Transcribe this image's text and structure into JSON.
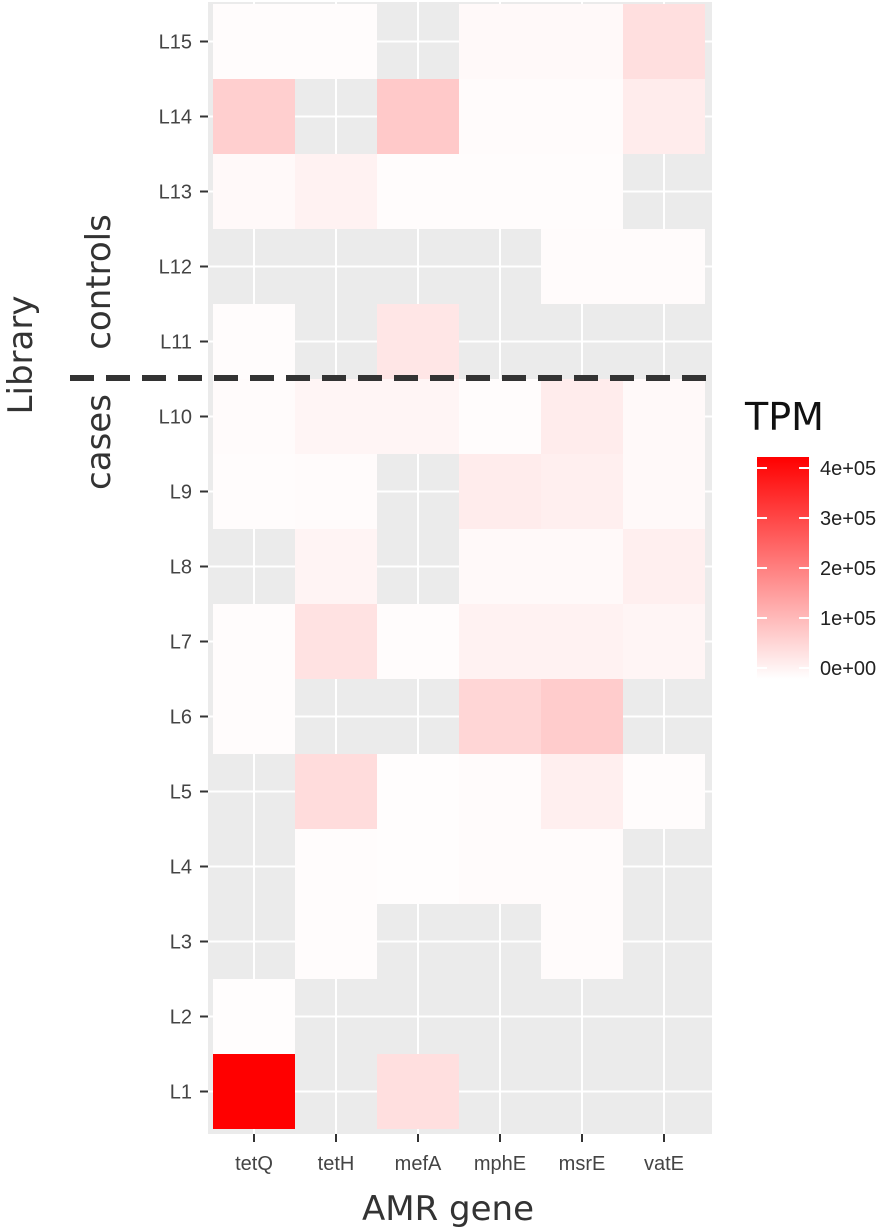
{
  "chart_data": {
    "type": "heatmap",
    "xlabel": "AMR gene",
    "ylabel": "Library",
    "x_categories": [
      "tetQ",
      "tetH",
      "mefA",
      "mphE",
      "msrE",
      "vatE"
    ],
    "y_categories": [
      "L1",
      "L2",
      "L3",
      "L4",
      "L5",
      "L6",
      "L7",
      "L8",
      "L9",
      "L10",
      "L11",
      "L12",
      "L13",
      "L14",
      "L15"
    ],
    "values": {
      "L1": [
        400000,
        0,
        50000,
        0,
        0,
        0
      ],
      "L2": [
        3000,
        0,
        0,
        0,
        0,
        0
      ],
      "L3": [
        0,
        5000,
        0,
        0,
        6000,
        0
      ],
      "L4": [
        0,
        5000,
        3000,
        7000,
        7000,
        0
      ],
      "L5": [
        0,
        55000,
        3000,
        6000,
        25000,
        5000
      ],
      "L6": [
        5000,
        0,
        0,
        65000,
        80000,
        0
      ],
      "L7": [
        5000,
        45000,
        5000,
        20000,
        20000,
        15000
      ],
      "L8": [
        0,
        18000,
        0,
        10000,
        10000,
        25000
      ],
      "L9": [
        4000,
        6000,
        0,
        30000,
        25000,
        10000
      ],
      "L10": [
        7000,
        15000,
        15000,
        5000,
        30000,
        10000
      ],
      "L11": [
        5000,
        0,
        40000,
        0,
        0,
        0
      ],
      "L12": [
        0,
        0,
        0,
        0,
        6000,
        6000
      ],
      "L13": [
        10000,
        20000,
        5000,
        5000,
        5000,
        0
      ],
      "L14": [
        75000,
        0,
        85000,
        7000,
        7000,
        30000
      ],
      "L15": [
        5000,
        5000,
        0,
        10000,
        10000,
        50000
      ]
    },
    "value_min": 0,
    "value_max": 400000,
    "low_color": "#ffffff",
    "high_color": "#ff0000",
    "legend": {
      "title": "TPM",
      "ticks": [
        0,
        100000,
        200000,
        300000,
        400000
      ],
      "tick_labels": [
        "0e+00",
        "1e+05",
        "2e+05",
        "3e+05",
        "4e+05"
      ]
    },
    "groups": [
      {
        "label": "cases",
        "rows": [
          "L1",
          "L2",
          "L3",
          "L4",
          "L5",
          "L6",
          "L7",
          "L8",
          "L9",
          "L10"
        ]
      },
      {
        "label": "controls",
        "rows": [
          "L11",
          "L12",
          "L13",
          "L14",
          "L15"
        ]
      }
    ],
    "divider_between": [
      "L10",
      "L11"
    ],
    "colors": {
      "panel_background": "#ebebeb",
      "grid": "#ffffff",
      "divider": "#333333"
    }
  }
}
